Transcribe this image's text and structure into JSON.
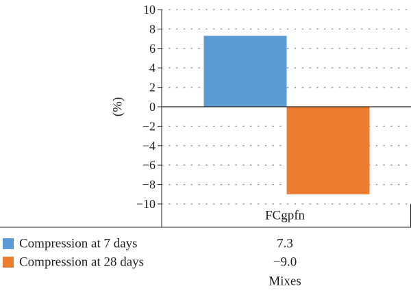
{
  "chart_data": {
    "type": "bar",
    "categories": [
      "FCgpfn"
    ],
    "series": [
      {
        "name": "Compression at 7 days",
        "values": [
          7.3
        ],
        "display_value": "7.3",
        "color": "#5b9bd5"
      },
      {
        "name": "Compression at 28 days",
        "values": [
          -9.0
        ],
        "display_value": "−9.0",
        "color": "#ed7d31"
      }
    ],
    "title": "",
    "xlabel": "Mixes",
    "ylabel": "(%)",
    "ylim": [
      -10,
      10
    ],
    "yticks": [
      10,
      8,
      6,
      4,
      2,
      0,
      -2,
      -4,
      -6,
      -8,
      -10
    ],
    "ytick_labels": [
      "10",
      "8",
      "6",
      "4",
      "2",
      "0",
      "−2",
      "−4",
      "−6",
      "−8",
      "−10"
    ],
    "grid": "horizontal dotted",
    "legend": "data-table"
  }
}
